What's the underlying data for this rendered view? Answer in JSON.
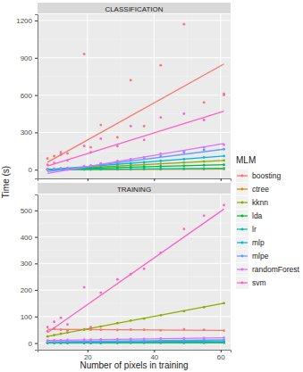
{
  "chart_data": [
    {
      "type": "scatter",
      "title": "CLASSIFICATION",
      "y_label": "Time (s)",
      "legend_title": "MLM",
      "legend": "right",
      "grid": true,
      "tick_labels": "y",
      "xlim": [
        5,
        63
      ],
      "xticks": [
        20,
        40,
        60
      ],
      "ylim": [
        -70,
        1250
      ],
      "yticks": [
        0,
        300,
        600,
        900,
        1200
      ],
      "x": [
        8,
        10,
        12,
        14,
        19,
        21,
        24,
        29,
        33,
        37,
        42,
        49,
        55,
        61
      ],
      "fit_x": [
        8,
        61
      ],
      "series": [
        {
          "name": "boosting",
          "color": "#F8766D",
          "values": [
            90,
            110,
            140,
            130,
            930,
            180,
            360,
            260,
            720,
            350,
            840,
            1170,
            540,
            610
          ],
          "fit": [
            60,
            850
          ]
        },
        {
          "name": "ctree",
          "color": "#D39200",
          "values": [
            0,
            0,
            1,
            1,
            1,
            1,
            2,
            2,
            2,
            3,
            3,
            4,
            4,
            5
          ],
          "fit": [
            0,
            5
          ]
        },
        {
          "name": "kknn",
          "color": "#93AA00",
          "values": [
            2,
            4,
            6,
            8,
            15,
            18,
            22,
            30,
            35,
            40,
            48,
            58,
            66,
            75
          ],
          "fit": [
            0,
            75
          ]
        },
        {
          "name": "lda",
          "color": "#00BA38",
          "values": [
            3,
            4,
            5,
            6,
            10,
            11,
            13,
            17,
            20,
            22,
            27,
            32,
            36,
            40
          ],
          "fit": [
            2,
            40
          ]
        },
        {
          "name": "lr",
          "color": "#00C19F",
          "values": [
            1,
            1,
            2,
            2,
            3,
            3,
            4,
            5,
            6,
            7,
            8,
            9,
            10,
            12
          ],
          "fit": [
            0,
            12
          ]
        },
        {
          "name": "mlp",
          "color": "#00B9E3",
          "values": [
            3,
            5,
            8,
            10,
            20,
            25,
            35,
            45,
            50,
            60,
            70,
            85,
            100,
            110
          ],
          "fit": [
            0,
            110
          ]
        },
        {
          "name": "mlpe",
          "color": "#619CFF",
          "values": [
            5,
            8,
            10,
            12,
            25,
            30,
            45,
            60,
            80,
            95,
            110,
            140,
            160,
            165
          ],
          "fit": [
            -15,
            165
          ]
        },
        {
          "name": "randomForest",
          "color": "#DB72FB",
          "values": [
            5,
            8,
            12,
            15,
            30,
            35,
            50,
            70,
            85,
            100,
            130,
            150,
            180,
            200
          ],
          "fit": [
            -30,
            210
          ]
        },
        {
          "name": "svm",
          "color": "#FF61C3",
          "values": [
            40,
            55,
            120,
            75,
            190,
            140,
            250,
            190,
            350,
            240,
            420,
            450,
            400,
            600
          ],
          "fit": [
            30,
            470
          ]
        }
      ]
    },
    {
      "type": "scatter",
      "title": "TRAINING",
      "x_label": "Number of pixels in training",
      "grid": true,
      "xlim": [
        5,
        63
      ],
      "xticks": [
        20,
        40,
        60
      ],
      "ylim": [
        -25,
        560
      ],
      "yticks": [
        0,
        100,
        200,
        300,
        400,
        500
      ],
      "x": [
        8,
        10,
        12,
        14,
        19,
        21,
        24,
        29,
        33,
        37,
        42,
        49,
        55,
        61
      ],
      "fit_x": [
        8,
        61
      ],
      "series": [
        {
          "values": [
            45,
            55,
            50,
            48,
            52,
            50,
            50,
            49,
            51,
            50,
            48,
            52,
            50,
            47
          ],
          "fit": [
            52,
            48
          ]
        },
        {
          "values": [
            0,
            0,
            0,
            0,
            0,
            0,
            1,
            1,
            1,
            1,
            1,
            1,
            1,
            1
          ],
          "fit": [
            0,
            1
          ]
        },
        {
          "values": [
            25,
            30,
            35,
            40,
            50,
            55,
            62,
            75,
            85,
            92,
            105,
            120,
            135,
            150
          ],
          "fit": [
            25,
            150
          ]
        },
        {
          "values": [
            1,
            1,
            1,
            1,
            1,
            1,
            1,
            2,
            2,
            2,
            2,
            2,
            2,
            2
          ],
          "fit": [
            1,
            2
          ]
        },
        {
          "values": [
            1,
            1,
            1,
            1,
            1,
            1,
            1,
            1,
            2,
            2,
            2,
            2,
            2,
            2
          ],
          "fit": [
            1,
            2
          ]
        },
        {
          "values": [
            3,
            3,
            3,
            4,
            4,
            4,
            5,
            5,
            6,
            6,
            6,
            7,
            7,
            8
          ],
          "fit": [
            3,
            8
          ]
        },
        {
          "values": [
            5,
            5,
            6,
            6,
            7,
            7,
            8,
            8,
            9,
            9,
            10,
            11,
            11,
            12
          ],
          "fit": [
            5,
            12
          ]
        },
        {
          "values": [
            10,
            11,
            11,
            12,
            13,
            13,
            14,
            15,
            16,
            16,
            17,
            18,
            19,
            20
          ],
          "fit": [
            10,
            20
          ]
        },
        {
          "values": [
            60,
            80,
            95,
            70,
            210,
            60,
            190,
            240,
            260,
            280,
            340,
            430,
            480,
            520
          ],
          "fit": [
            40,
            505
          ]
        }
      ]
    }
  ]
}
